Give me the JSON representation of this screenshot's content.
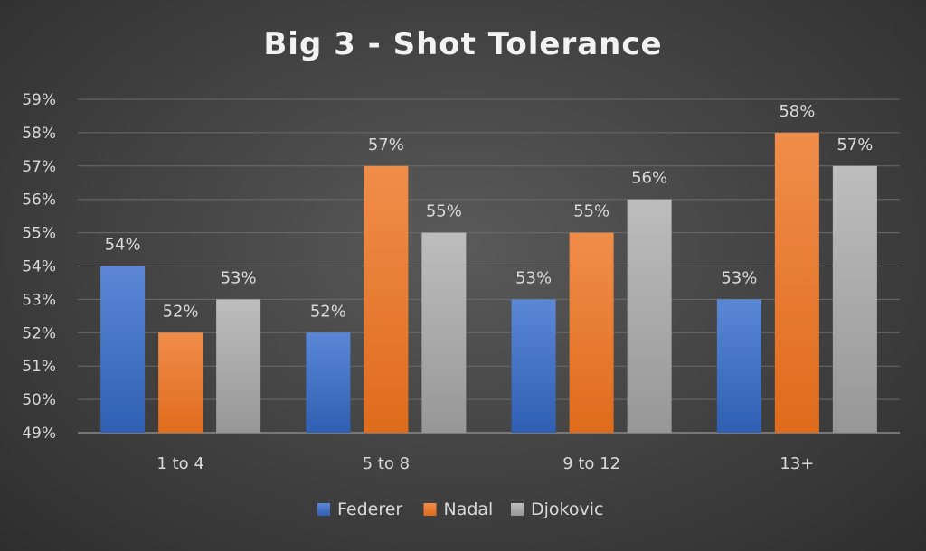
{
  "chart_data": {
    "type": "bar",
    "title": "Big 3 - Shot Tolerance",
    "categories": [
      "1 to 4",
      "5 to 8",
      "9 to 12",
      "13+"
    ],
    "series": [
      {
        "name": "Federer",
        "values": [
          54,
          52,
          53,
          53
        ],
        "labels": [
          "54%",
          "52%",
          "53%",
          "53%"
        ],
        "color": "#4472c4"
      },
      {
        "name": "Nadal",
        "values": [
          52,
          57,
          55,
          58
        ],
        "labels": [
          "52%",
          "57%",
          "55%",
          "58%"
        ],
        "color": "#ed7d31"
      },
      {
        "name": "Djokovic",
        "values": [
          53,
          55,
          56,
          57
        ],
        "labels": [
          "53%",
          "55%",
          "56%",
          "57%"
        ],
        "color": "#a5a5a5"
      }
    ],
    "y_ticks": [
      "49%",
      "50%",
      "51%",
      "52%",
      "53%",
      "54%",
      "55%",
      "56%",
      "57%",
      "58%",
      "59%"
    ],
    "ylim": [
      49,
      59
    ],
    "grid": true,
    "legend_position": "bottom"
  }
}
